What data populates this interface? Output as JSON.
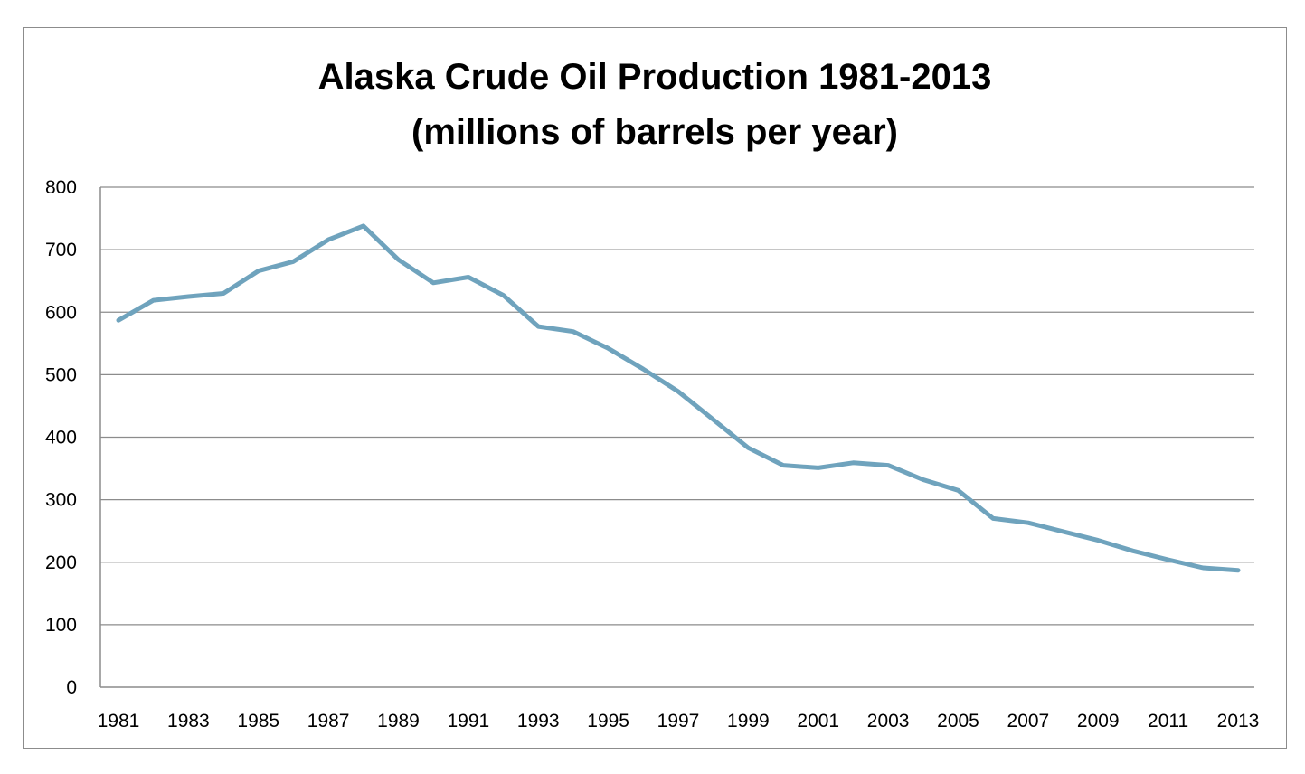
{
  "chart_data": {
    "type": "line",
    "title": "Alaska Crude Oil Production 1981-2013",
    "subtitle": "(millions of barrels per year)",
    "xlabel": "",
    "ylabel": "",
    "ylim": [
      0,
      800
    ],
    "y_ticks": [
      "0",
      "100",
      "200",
      "300",
      "400",
      "500",
      "600",
      "700",
      "800"
    ],
    "x_tick_labels": [
      "1981",
      "1983",
      "1985",
      "1987",
      "1989",
      "1991",
      "1993",
      "1995",
      "1997",
      "1999",
      "2001",
      "2003",
      "2005",
      "2007",
      "2009",
      "2011",
      "2013"
    ],
    "grid": "horizontal",
    "legend": "none",
    "line_color": "#6fa3bd",
    "x": [
      1981,
      1982,
      1983,
      1984,
      1985,
      1986,
      1987,
      1988,
      1989,
      1990,
      1991,
      1992,
      1993,
      1994,
      1995,
      1996,
      1997,
      1998,
      1999,
      2000,
      2001,
      2002,
      2003,
      2004,
      2005,
      2006,
      2007,
      2008,
      2009,
      2010,
      2011,
      2012,
      2013
    ],
    "values": [
      587,
      619,
      625,
      630,
      666,
      681,
      716,
      738,
      684,
      647,
      656,
      627,
      577,
      569,
      542,
      509,
      473,
      428,
      383,
      355,
      351,
      359,
      355,
      332,
      315,
      270,
      263,
      249,
      235,
      218,
      204,
      191,
      187
    ]
  }
}
